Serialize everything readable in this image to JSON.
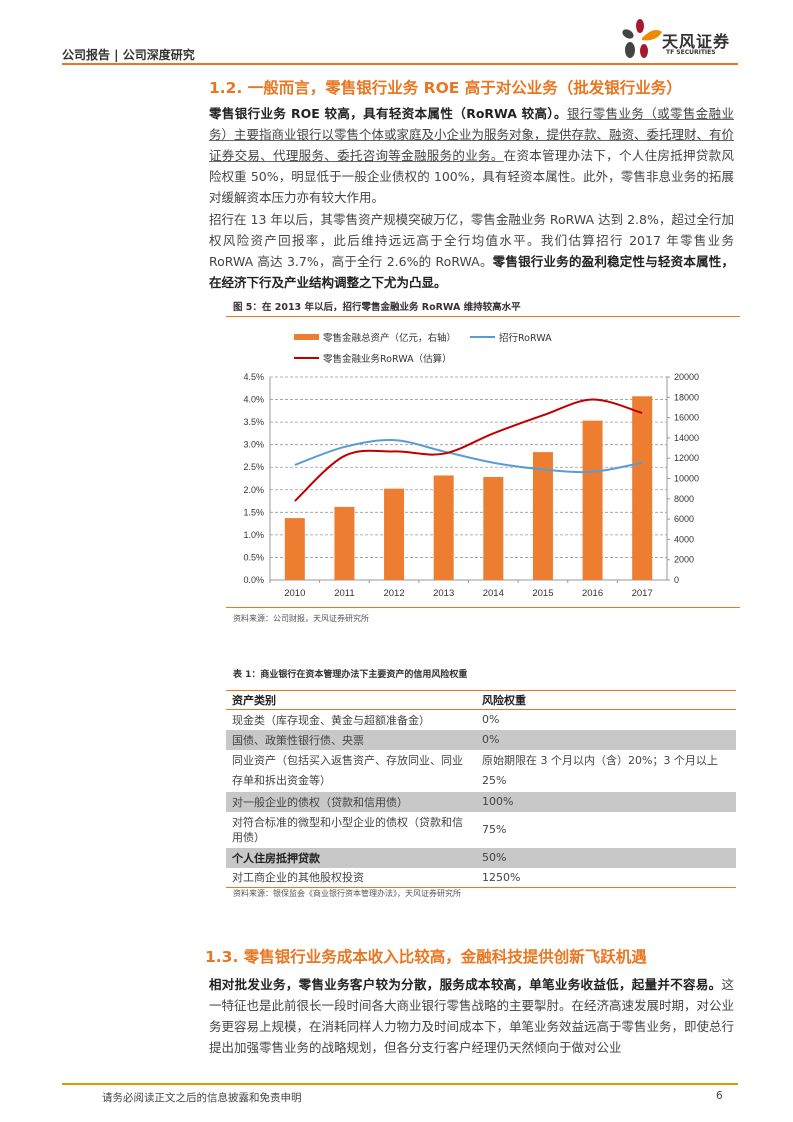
{
  "header": {
    "report_type": "公司报告 | 公司深度研究",
    "logo_cn": "天风证券",
    "logo_en": "TF SECURITIES"
  },
  "section_1_2": {
    "title": "1.2. 一般而言，零售银行业务 ROE 高于对公业务（批发银行业务）",
    "p1_bold": "零售银行业务 ROE 较高，具有轻资本属性（RoRWA 较高）。",
    "p1_underline": "银行零售业务（或零售金融业务）主要指商业银行以零售个体或家庭及小企业为服务对象，提供存款、融资、委托理财、有价证券交易、代理服务、委托咨询等金融服务的业务。",
    "p1_rest": "在资本管理办法下，个人住房抵押贷款风险权重 50%，明显低于一般企业债权的 100%，具有轻资本属性。此外，零售非息业务的拓展对缓解资本压力亦有较大作用。",
    "p2_normal": "招行在 13 年以后，其零售资产规模突破万亿，零售金融业务 RoRWA 达到 2.8%，超过全行加权风险资产回报率，此后维持远远高于全行均值水平。我们估算招行 2017 年零售业务 RoRWA 高达 3.7%，高于全行 2.6%的 RoRWA。",
    "p2_bold": "零售银行业务的盈利稳定性与轻资本属性，在经济下行及产业结构调整之下尤为凸显。"
  },
  "figure5": {
    "title": "图 5：在 2013 年以后，招行零售金融业务 RoRWA 维持较高水平",
    "source": "资料来源：公司财报，天风证券研究所"
  },
  "chart_data": {
    "type": "bar+line",
    "title": "在 2013 年以后，招行零售金融业务 RoRWA 维持较高水平",
    "categories": [
      "2010",
      "2011",
      "2012",
      "2013",
      "2014",
      "2015",
      "2016",
      "2017"
    ],
    "series": [
      {
        "name": "零售金融总资产（亿元，右轴）",
        "type": "bar",
        "axis": "right",
        "color": "#ed7d31",
        "values": [
          6100,
          7200,
          9000,
          10300,
          10150,
          12600,
          15700,
          18100
        ]
      },
      {
        "name": "招行RoRWA",
        "type": "line",
        "axis": "left",
        "color": "#5b9bd5",
        "values": [
          2.55,
          2.95,
          3.1,
          2.85,
          2.6,
          2.45,
          2.4,
          2.6
        ]
      },
      {
        "name": "零售金融业务RoRWA（估算）",
        "type": "line",
        "axis": "left",
        "color": "#c00000",
        "values": [
          1.75,
          2.75,
          2.85,
          2.8,
          3.25,
          3.65,
          4.0,
          3.7
        ]
      }
    ],
    "left_axis": {
      "ticks": [
        "0.0%",
        "0.5%",
        "1.0%",
        "1.5%",
        "2.0%",
        "2.5%",
        "3.0%",
        "3.5%",
        "4.0%",
        "4.5%"
      ],
      "ylim": [
        0,
        4.5
      ]
    },
    "right_axis": {
      "ticks": [
        "0",
        "2000",
        "4000",
        "6000",
        "8000",
        "10000",
        "12000",
        "14000",
        "16000",
        "18000",
        "20000"
      ],
      "ylim": [
        0,
        20000
      ]
    },
    "grid": "dashed horizontal",
    "legend_position": "top"
  },
  "table1": {
    "title": "表 1：商业银行在资本管理办法下主要资产的信用风险权重",
    "headers": [
      "资产类别",
      "风险权重"
    ],
    "rows": [
      {
        "category": "现金类（库存现金、黄金与超额准备金）",
        "weight": "0%"
      },
      {
        "category": "国债、政策性银行债、央票",
        "weight": "0%"
      },
      {
        "category": "同业资产（包括买入返售资产、存放同业、同业存单和拆出资金等）",
        "weight": "原始期限在 3 个月以内（含）20%；3 个月以上 25%"
      },
      {
        "category": "对一般企业的债权（贷款和信用债）",
        "weight": "100%"
      },
      {
        "category": "对符合标准的微型和小型企业的债权（贷款和信用债）",
        "weight": "75%"
      },
      {
        "category": "个人住房抵押贷款",
        "weight": "50%"
      },
      {
        "category": "对工商企业的其他股权投资",
        "weight": "1250%"
      }
    ],
    "source": "资料来源：银保监会《商业银行资本管理办法》，天风证券研究所"
  },
  "section_1_3": {
    "title": "1.3. 零售银行业务成本收入比较高，金融科技提供创新飞跃机遇",
    "p1_bold": "相对批发业务，零售业务客户较为分散，服务成本较高，单笔业务收益低，起量并不容易。",
    "p1_rest": "这一特征也是此前很长一段时间各大商业银行零售战略的主要掣肘。在经济高速发展时期，对公业务更容易上规模，在消耗同样人力物力及时间成本下，单笔业务效益远高于零售业务，即使总行提出加强零售业务的战略规划，但各分支行客户经理仍天然倾向于做对公业"
  },
  "footer": {
    "disclaimer": "请务必阅读正文之后的信息披露和免责申明",
    "page_number": "6"
  }
}
